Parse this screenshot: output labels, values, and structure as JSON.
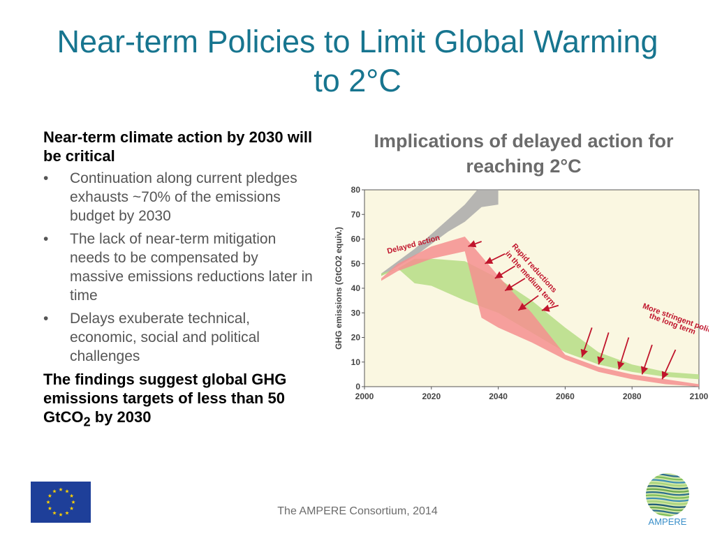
{
  "slide": {
    "title": "Near-term Policies to Limit Global Warming to 2°C",
    "lead": "Near-term climate action by 2030 will be critical",
    "bullets": [
      "Continuation along current pledges exhausts ~70% of the emissions budget by 2030",
      "The lack of near-term mitigation needs to be compensated by massive emissions reductions later in time",
      "Delays exuberate technical, economic, social and political challenges"
    ],
    "finding_main": "The findings suggest global GHG emissions targets of less than 50 GtCO",
    "finding_sub": "2",
    "finding_tail": " by 2030",
    "footer": "The AMPERE Consortium, 2014",
    "logo_text": "AMPERE",
    "bullet_glyph": "•"
  },
  "chart_data": {
    "type": "area",
    "title": "Implications of delayed action for reaching 2°C",
    "ylabel": "GHG emissions (GtCO2 equiv.)",
    "xlabel": "",
    "xlim": [
      2000,
      2100
    ],
    "ylim": [
      0,
      80
    ],
    "xticks": [
      2000,
      2020,
      2040,
      2060,
      2080,
      2100
    ],
    "yticks": [
      0,
      10,
      20,
      30,
      40,
      50,
      60,
      70,
      80
    ],
    "grid": false,
    "background": "#faf7e1",
    "series": [
      {
        "color": "#a9a9a9",
        "upper": [
          [
            2005,
            46
          ],
          [
            2010,
            51
          ],
          [
            2015,
            56
          ],
          [
            2020,
            62
          ],
          [
            2025,
            68
          ],
          [
            2030,
            74
          ],
          [
            2035,
            82
          ],
          [
            2040,
            86
          ]
        ],
        "lower": [
          [
            2040,
            74
          ],
          [
            2035,
            73
          ],
          [
            2030,
            67
          ],
          [
            2025,
            63
          ],
          [
            2020,
            58
          ],
          [
            2015,
            53
          ],
          [
            2010,
            49
          ],
          [
            2005,
            45
          ]
        ]
      },
      {
        "color": "#b5dd85",
        "upper": [
          [
            2005,
            46
          ],
          [
            2010,
            48
          ],
          [
            2015,
            52
          ],
          [
            2020,
            52
          ],
          [
            2030,
            51
          ],
          [
            2040,
            44
          ],
          [
            2050,
            35
          ],
          [
            2060,
            24
          ],
          [
            2070,
            14
          ],
          [
            2080,
            9
          ],
          [
            2090,
            6
          ],
          [
            2100,
            5
          ]
        ],
        "lower": [
          [
            2100,
            3
          ],
          [
            2090,
            4
          ],
          [
            2080,
            6
          ],
          [
            2070,
            9
          ],
          [
            2060,
            14
          ],
          [
            2050,
            22
          ],
          [
            2040,
            30
          ],
          [
            2030,
            35
          ],
          [
            2020,
            41
          ],
          [
            2015,
            42
          ],
          [
            2010,
            48
          ],
          [
            2005,
            45
          ]
        ]
      },
      {
        "color": "#f48f8f",
        "upper": [
          [
            2005,
            44
          ],
          [
            2010,
            50
          ],
          [
            2020,
            57
          ],
          [
            2030,
            61
          ],
          [
            2040,
            45
          ],
          [
            2050,
            30
          ],
          [
            2060,
            13
          ],
          [
            2070,
            8
          ],
          [
            2080,
            5
          ],
          [
            2090,
            3
          ],
          [
            2100,
            1
          ]
        ],
        "lower": [
          [
            2100,
            0
          ],
          [
            2090,
            1
          ],
          [
            2080,
            3
          ],
          [
            2070,
            6
          ],
          [
            2060,
            11
          ],
          [
            2050,
            18
          ],
          [
            2040,
            24
          ],
          [
            2035,
            28
          ],
          [
            2030,
            55
          ],
          [
            2020,
            52
          ],
          [
            2010,
            47
          ],
          [
            2005,
            43
          ]
        ]
      }
    ],
    "annotations": [
      {
        "text": "Delayed action",
        "x": 2007,
        "y": 54,
        "angle": -15
      },
      {
        "text": "Rapid reductions",
        "x": 2044,
        "y": 57,
        "angle": 48
      },
      {
        "text": "in the medium term",
        "x": 2042,
        "y": 54,
        "angle": 48
      },
      {
        "text": "More stringent policies in",
        "x": 2083,
        "y": 32,
        "angle": 20
      },
      {
        "text": "the long term",
        "x": 2085,
        "y": 28,
        "angle": 20
      }
    ],
    "annotation_color": "#c0152c",
    "arrows": [
      {
        "from": [
          2035,
          59
        ],
        "to": [
          2031,
          57
        ]
      },
      {
        "from": [
          2042,
          54
        ],
        "to": [
          2036,
          50
        ]
      },
      {
        "from": [
          2045,
          49
        ],
        "to": [
          2039,
          44
        ]
      },
      {
        "from": [
          2048,
          44
        ],
        "to": [
          2042,
          39
        ]
      },
      {
        "from": [
          2052,
          37
        ],
        "to": [
          2046,
          31
        ]
      },
      {
        "from": [
          2058,
          33
        ],
        "to": [
          2053,
          31
        ]
      },
      {
        "from": [
          2068,
          24
        ],
        "to": [
          2065,
          12
        ]
      },
      {
        "from": [
          2073,
          22
        ],
        "to": [
          2070,
          9
        ]
      },
      {
        "from": [
          2079,
          20
        ],
        "to": [
          2076,
          7
        ]
      },
      {
        "from": [
          2086,
          17
        ],
        "to": [
          2083,
          5
        ]
      },
      {
        "from": [
          2093,
          15
        ],
        "to": [
          2089,
          3
        ]
      }
    ]
  }
}
